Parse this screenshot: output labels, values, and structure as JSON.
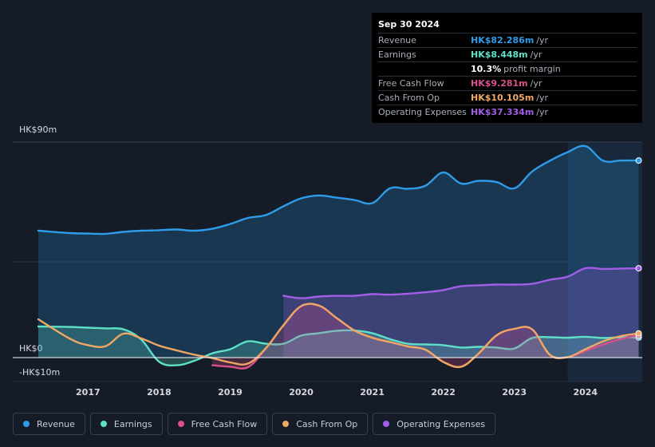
{
  "tooltip": {
    "date": "Sep 30 2024",
    "rows": [
      {
        "label": "Revenue",
        "value": "HK$82.286m",
        "unit": "/yr",
        "color": "#2e9ce8"
      },
      {
        "label": "Earnings",
        "value": "HK$8.448m",
        "unit": "/yr",
        "color": "#5ee0c8"
      },
      {
        "label": "",
        "value": "10.3%",
        "unit": "profit margin",
        "color": "#ffffff"
      },
      {
        "label": "Free Cash Flow",
        "value": "HK$9.281m",
        "unit": "/yr",
        "color": "#d9508a"
      },
      {
        "label": "Cash From Op",
        "value": "HK$10.105m",
        "unit": "/yr",
        "color": "#eea864"
      },
      {
        "label": "Operating Expenses",
        "value": "HK$37.334m",
        "unit": "/yr",
        "color": "#a35ee8"
      }
    ]
  },
  "legend": [
    {
      "label": "Revenue",
      "color": "#2e9ce8"
    },
    {
      "label": "Earnings",
      "color": "#5ee0c8"
    },
    {
      "label": "Free Cash Flow",
      "color": "#d9508a"
    },
    {
      "label": "Cash From Op",
      "color": "#eea864"
    },
    {
      "label": "Operating Expenses",
      "color": "#a35ee8"
    }
  ],
  "chart_data": {
    "type": "area",
    "y_tick_labels": [
      "HK$90m",
      "HK$0",
      "-HK$10m"
    ],
    "ylim": [
      -10,
      90
    ],
    "xlim": [
      2016.3,
      2024.8
    ],
    "x_tick_labels": [
      "2017",
      "2018",
      "2019",
      "2020",
      "2021",
      "2022",
      "2023",
      "2024"
    ],
    "x_tick_values": [
      2017,
      2018,
      2019,
      2020,
      2021,
      2022,
      2023,
      2024
    ],
    "highlight_from": 2023.75,
    "series": [
      {
        "name": "Revenue",
        "color": "#2e9ce8",
        "fill": true,
        "x": [
          2016.3,
          2016.75,
          2017.0,
          2017.25,
          2017.5,
          2017.75,
          2018.0,
          2018.25,
          2018.5,
          2018.75,
          2019.0,
          2019.25,
          2019.5,
          2019.75,
          2020.0,
          2020.25,
          2020.5,
          2020.75,
          2021.0,
          2021.25,
          2021.5,
          2021.75,
          2022.0,
          2022.25,
          2022.5,
          2022.75,
          2023.0,
          2023.25,
          2023.5,
          2023.75,
          2024.0,
          2024.25,
          2024.5,
          2024.75
        ],
        "y": [
          53,
          52,
          51.8,
          51.7,
          52.5,
          53,
          53.2,
          53.5,
          53,
          53.8,
          55.8,
          58.3,
          59.5,
          63.2,
          66.5,
          67.7,
          66.8,
          65.8,
          64.5,
          70.7,
          70.5,
          71.8,
          77.3,
          72.7,
          73.8,
          73.3,
          70.7,
          77.7,
          82.2,
          85.8,
          88.3,
          82.2,
          82.3,
          82.3
        ]
      },
      {
        "name": "Operating Expenses",
        "color": "#a35ee8",
        "fill": true,
        "x": [
          2019.75,
          2020.0,
          2020.25,
          2020.5,
          2020.75,
          2021.0,
          2021.25,
          2021.5,
          2021.75,
          2022.0,
          2022.25,
          2022.5,
          2022.75,
          2023.0,
          2023.25,
          2023.5,
          2023.75,
          2024.0,
          2024.25,
          2024.5,
          2024.75
        ],
        "y": [
          25.8,
          24.8,
          25.5,
          25.8,
          25.8,
          26.5,
          26.3,
          26.7,
          27.3,
          28.2,
          29.8,
          30.2,
          30.5,
          30.5,
          30.8,
          32.5,
          33.8,
          37.3,
          37.0,
          37.2,
          37.3
        ]
      },
      {
        "name": "Earnings",
        "color": "#5ee0c8",
        "fill": true,
        "x": [
          2016.3,
          2016.75,
          2017.0,
          2017.25,
          2017.5,
          2017.75,
          2018.0,
          2018.25,
          2018.5,
          2018.75,
          2019.0,
          2019.25,
          2019.5,
          2019.75,
          2020.0,
          2020.25,
          2020.5,
          2020.75,
          2021.0,
          2021.25,
          2021.5,
          2021.75,
          2022.0,
          2022.25,
          2022.5,
          2022.75,
          2023.0,
          2023.25,
          2023.5,
          2023.75,
          2024.0,
          2024.25,
          2024.5,
          2024.75
        ],
        "y": [
          13,
          12.8,
          12.5,
          12.2,
          11.8,
          7.5,
          -1.7,
          -3.2,
          -1.3,
          1.8,
          3.5,
          6.8,
          5.8,
          5.8,
          9.2,
          10.2,
          11.2,
          11.3,
          10.2,
          7.7,
          5.8,
          5.5,
          5.2,
          4.2,
          4.5,
          4.2,
          3.8,
          8.2,
          8.5,
          8.3,
          8.7,
          8.2,
          8.5,
          8.4
        ]
      },
      {
        "name": "Free Cash Flow",
        "color": "#d9508a",
        "fill": true,
        "x": [
          2018.75,
          2019.0,
          2019.25,
          2019.5,
          2019.75,
          2020.0,
          2020.25,
          2020.5,
          2020.75,
          2021.0,
          2021.25,
          2021.5,
          2021.75,
          2022.0,
          2022.25,
          2022.5,
          2022.75,
          2023.0,
          2023.25,
          2023.5,
          2023.75,
          2024.0,
          2024.25,
          2024.5,
          2024.75
        ],
        "y": [
          -3.2,
          -3.8,
          -4.0,
          3.8,
          13.5,
          21.5,
          21.7,
          16.5,
          11.3,
          8.3,
          6.5,
          4.7,
          3.3,
          -1.8,
          -3.8,
          1.8,
          9.3,
          12.0,
          11.8,
          1.2,
          0.2,
          2.8,
          5.5,
          7.8,
          9.3
        ]
      },
      {
        "name": "Cash From Op",
        "color": "#eea864",
        "fill": false,
        "x": [
          2016.3,
          2016.75,
          2017.0,
          2017.25,
          2017.5,
          2017.75,
          2018.0,
          2018.25,
          2018.5,
          2018.75,
          2019.0,
          2019.25,
          2019.5,
          2019.75,
          2020.0,
          2020.25,
          2020.5,
          2020.75,
          2021.0,
          2021.25,
          2021.5,
          2021.75,
          2022.0,
          2022.25,
          2022.5,
          2022.75,
          2023.0,
          2023.25,
          2023.5,
          2023.75,
          2024.0,
          2024.25,
          2024.5,
          2024.75
        ],
        "y": [
          16,
          7.8,
          5.2,
          4.8,
          10,
          8,
          5,
          3,
          1.2,
          -0.2,
          -2,
          -2.5,
          3.8,
          13.5,
          21.5,
          21.7,
          16.5,
          11.3,
          8.3,
          6.5,
          4.7,
          3.3,
          -1.8,
          -3.8,
          1.8,
          9.3,
          12,
          11.8,
          1.2,
          0.2,
          3.5,
          6.8,
          9,
          10.1
        ]
      }
    ]
  }
}
